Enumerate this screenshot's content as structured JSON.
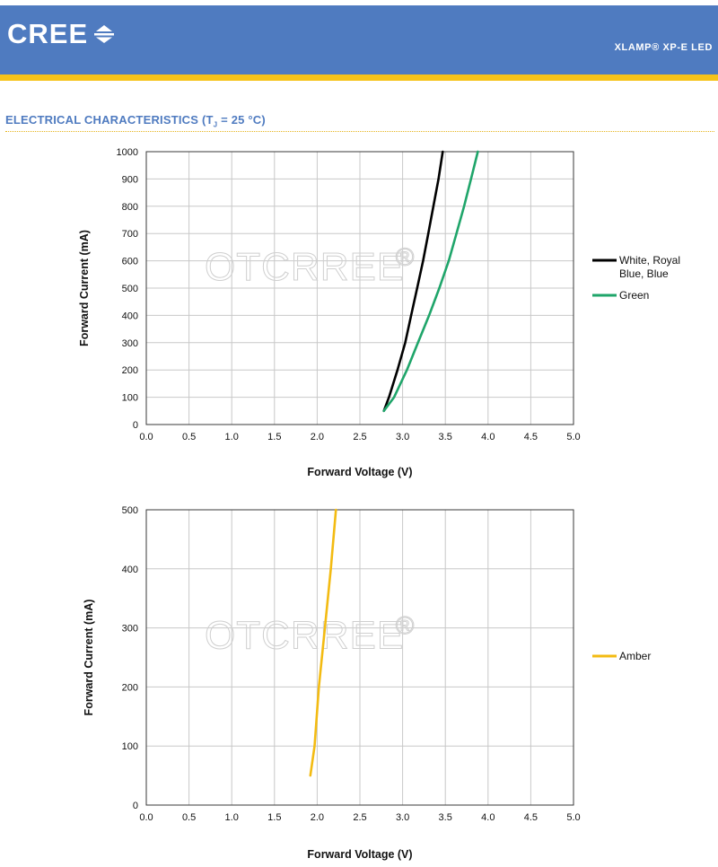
{
  "header": {
    "brand": "CREE",
    "brand_icon": "cree-logo-mark-icon",
    "product": "XLAMP® XP-E LED",
    "background_color": "#4f7bc0",
    "stripe_color": "#f6c31a"
  },
  "section": {
    "title_prefix": "ELECTRICAL CHARACTERISTICS (T",
    "title_sub": "J",
    "title_suffix": " = 25 °C)"
  },
  "watermark": {
    "text": "OTCRREE",
    "mark": "®"
  },
  "chart_data": [
    {
      "type": "line",
      "xlabel": "Forward Voltage (V)",
      "ylabel": "Forward Current (mA)",
      "xlim": [
        0,
        5
      ],
      "ylim": [
        0,
        1000
      ],
      "x_ticks": [
        "0.0",
        "0.5",
        "1.0",
        "1.5",
        "2.0",
        "2.5",
        "3.0",
        "3.5",
        "4.0",
        "4.5",
        "5.0"
      ],
      "y_ticks": [
        "0",
        "100",
        "200",
        "300",
        "400",
        "500",
        "600",
        "700",
        "800",
        "900",
        "1000"
      ],
      "grid": true,
      "legend_position": "right",
      "series": [
        {
          "name": "White, Royal Blue, Blue",
          "color": "#000000",
          "points": [
            [
              2.78,
              50
            ],
            [
              2.84,
              100
            ],
            [
              2.94,
              200
            ],
            [
              3.03,
              300
            ],
            [
              3.1,
              400
            ],
            [
              3.17,
              500
            ],
            [
              3.24,
              600
            ],
            [
              3.3,
              700
            ],
            [
              3.36,
              800
            ],
            [
              3.42,
              900
            ],
            [
              3.47,
              1000
            ]
          ]
        },
        {
          "name": "Green",
          "color": "#1fa56a",
          "points": [
            [
              2.78,
              50
            ],
            [
              2.9,
              100
            ],
            [
              3.05,
              200
            ],
            [
              3.18,
              300
            ],
            [
              3.31,
              400
            ],
            [
              3.43,
              500
            ],
            [
              3.54,
              600
            ],
            [
              3.63,
              700
            ],
            [
              3.72,
              800
            ],
            [
              3.8,
              900
            ],
            [
              3.88,
              1000
            ]
          ]
        }
      ]
    },
    {
      "type": "line",
      "xlabel": "Forward Voltage (V)",
      "ylabel": "Forward Current (mA)",
      "xlim": [
        0,
        5
      ],
      "ylim": [
        0,
        500
      ],
      "x_ticks": [
        "0.0",
        "0.5",
        "1.0",
        "1.5",
        "2.0",
        "2.5",
        "3.0",
        "3.5",
        "4.0",
        "4.5",
        "5.0"
      ],
      "y_ticks": [
        "0",
        "100",
        "200",
        "300",
        "400",
        "500"
      ],
      "grid": true,
      "legend_position": "right",
      "series": [
        {
          "name": "Amber",
          "color": "#f3bb12",
          "points": [
            [
              1.92,
              50
            ],
            [
              1.97,
              100
            ],
            [
              2.02,
              200
            ],
            [
              2.09,
              300
            ],
            [
              2.16,
              400
            ],
            [
              2.22,
              500
            ]
          ]
        }
      ]
    }
  ]
}
